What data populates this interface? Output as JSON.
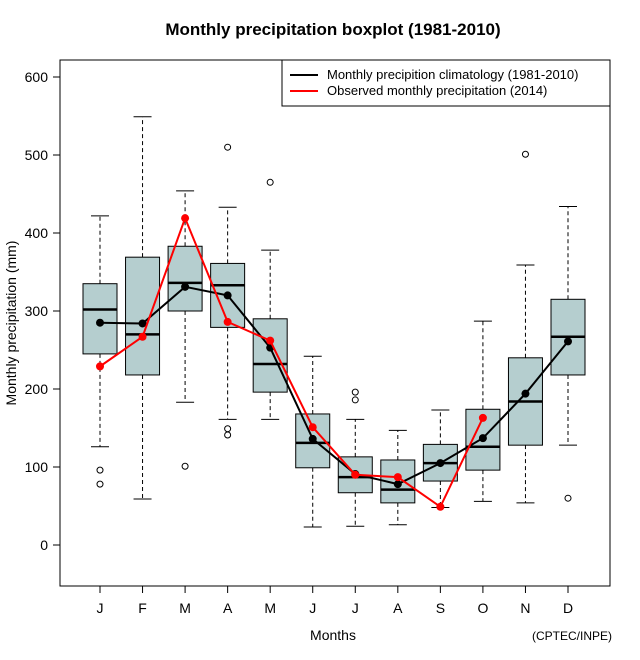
{
  "chart_data": {
    "type": "boxplot",
    "title": "Monthly precipitation boxplot (1981-2010)",
    "xlabel": "Months",
    "ylabel": "Monthly precipitation (mm)",
    "credit": "(CPTEC/INPE)",
    "ylim": [
      -50,
      620
    ],
    "yticks": [
      0,
      100,
      200,
      300,
      400,
      500,
      600
    ],
    "ytick_labels": [
      "0",
      "100",
      "200",
      "300",
      "400",
      "500",
      "600"
    ],
    "categories": [
      "J",
      "F",
      "M",
      "A",
      "M",
      "J",
      "J",
      "A",
      "S",
      "O",
      "N",
      "D"
    ],
    "grid": false,
    "legend_position": "top-right",
    "box_fill_color": "#b5cecf",
    "boxes": [
      {
        "month": "J",
        "whisker_low": 126,
        "q1": 245,
        "median": 302,
        "q3": 335,
        "whisker_high": 422,
        "outliers": [
          96,
          78
        ]
      },
      {
        "month": "F",
        "whisker_low": 59,
        "q1": 218,
        "median": 270,
        "q3": 369,
        "whisker_high": 549,
        "outliers": []
      },
      {
        "month": "M",
        "whisker_low": 183,
        "q1": 300,
        "median": 336,
        "q3": 383,
        "whisker_high": 454,
        "outliers": [
          101
        ]
      },
      {
        "month": "A",
        "whisker_low": 161,
        "q1": 279,
        "median": 333,
        "q3": 361,
        "whisker_high": 433,
        "outliers": [
          510,
          149,
          141
        ]
      },
      {
        "month": "M",
        "whisker_low": 161,
        "q1": 196,
        "median": 232,
        "q3": 290,
        "whisker_high": 378,
        "outliers": [
          465
        ]
      },
      {
        "month": "J",
        "whisker_low": 23,
        "q1": 99,
        "median": 131,
        "q3": 168,
        "whisker_high": 242,
        "outliers": []
      },
      {
        "month": "J",
        "whisker_low": 24,
        "q1": 67,
        "median": 87,
        "q3": 113,
        "whisker_high": 161,
        "outliers": [
          196,
          186
        ]
      },
      {
        "month": "A",
        "whisker_low": 26,
        "q1": 54,
        "median": 71,
        "q3": 109,
        "whisker_high": 147,
        "outliers": []
      },
      {
        "month": "S",
        "whisker_low": 48,
        "q1": 82,
        "median": 105,
        "q3": 129,
        "whisker_high": 173,
        "outliers": []
      },
      {
        "month": "O",
        "whisker_low": 56,
        "q1": 96,
        "median": 126,
        "q3": 174,
        "whisker_high": 287,
        "outliers": []
      },
      {
        "month": "N",
        "whisker_low": 54,
        "q1": 128,
        "median": 184,
        "q3": 240,
        "whisker_high": 359,
        "outliers": [
          501
        ]
      },
      {
        "month": "D",
        "whisker_low": 128,
        "q1": 218,
        "median": 267,
        "q3": 315,
        "whisker_high": 434,
        "outliers": [
          60
        ]
      }
    ],
    "series": [
      {
        "name": "Monthly precipition climatology (1981-2010)",
        "color": "#000000",
        "type": "line",
        "values": [
          285,
          284,
          331,
          320,
          253,
          136,
          91,
          78,
          105,
          137,
          194,
          261
        ]
      },
      {
        "name": "Observed monthly precipitation (2014)",
        "color": "#ff0000",
        "type": "line",
        "values": [
          229,
          267,
          419,
          286,
          262,
          151,
          90,
          87,
          49,
          163,
          null,
          null
        ]
      }
    ]
  }
}
